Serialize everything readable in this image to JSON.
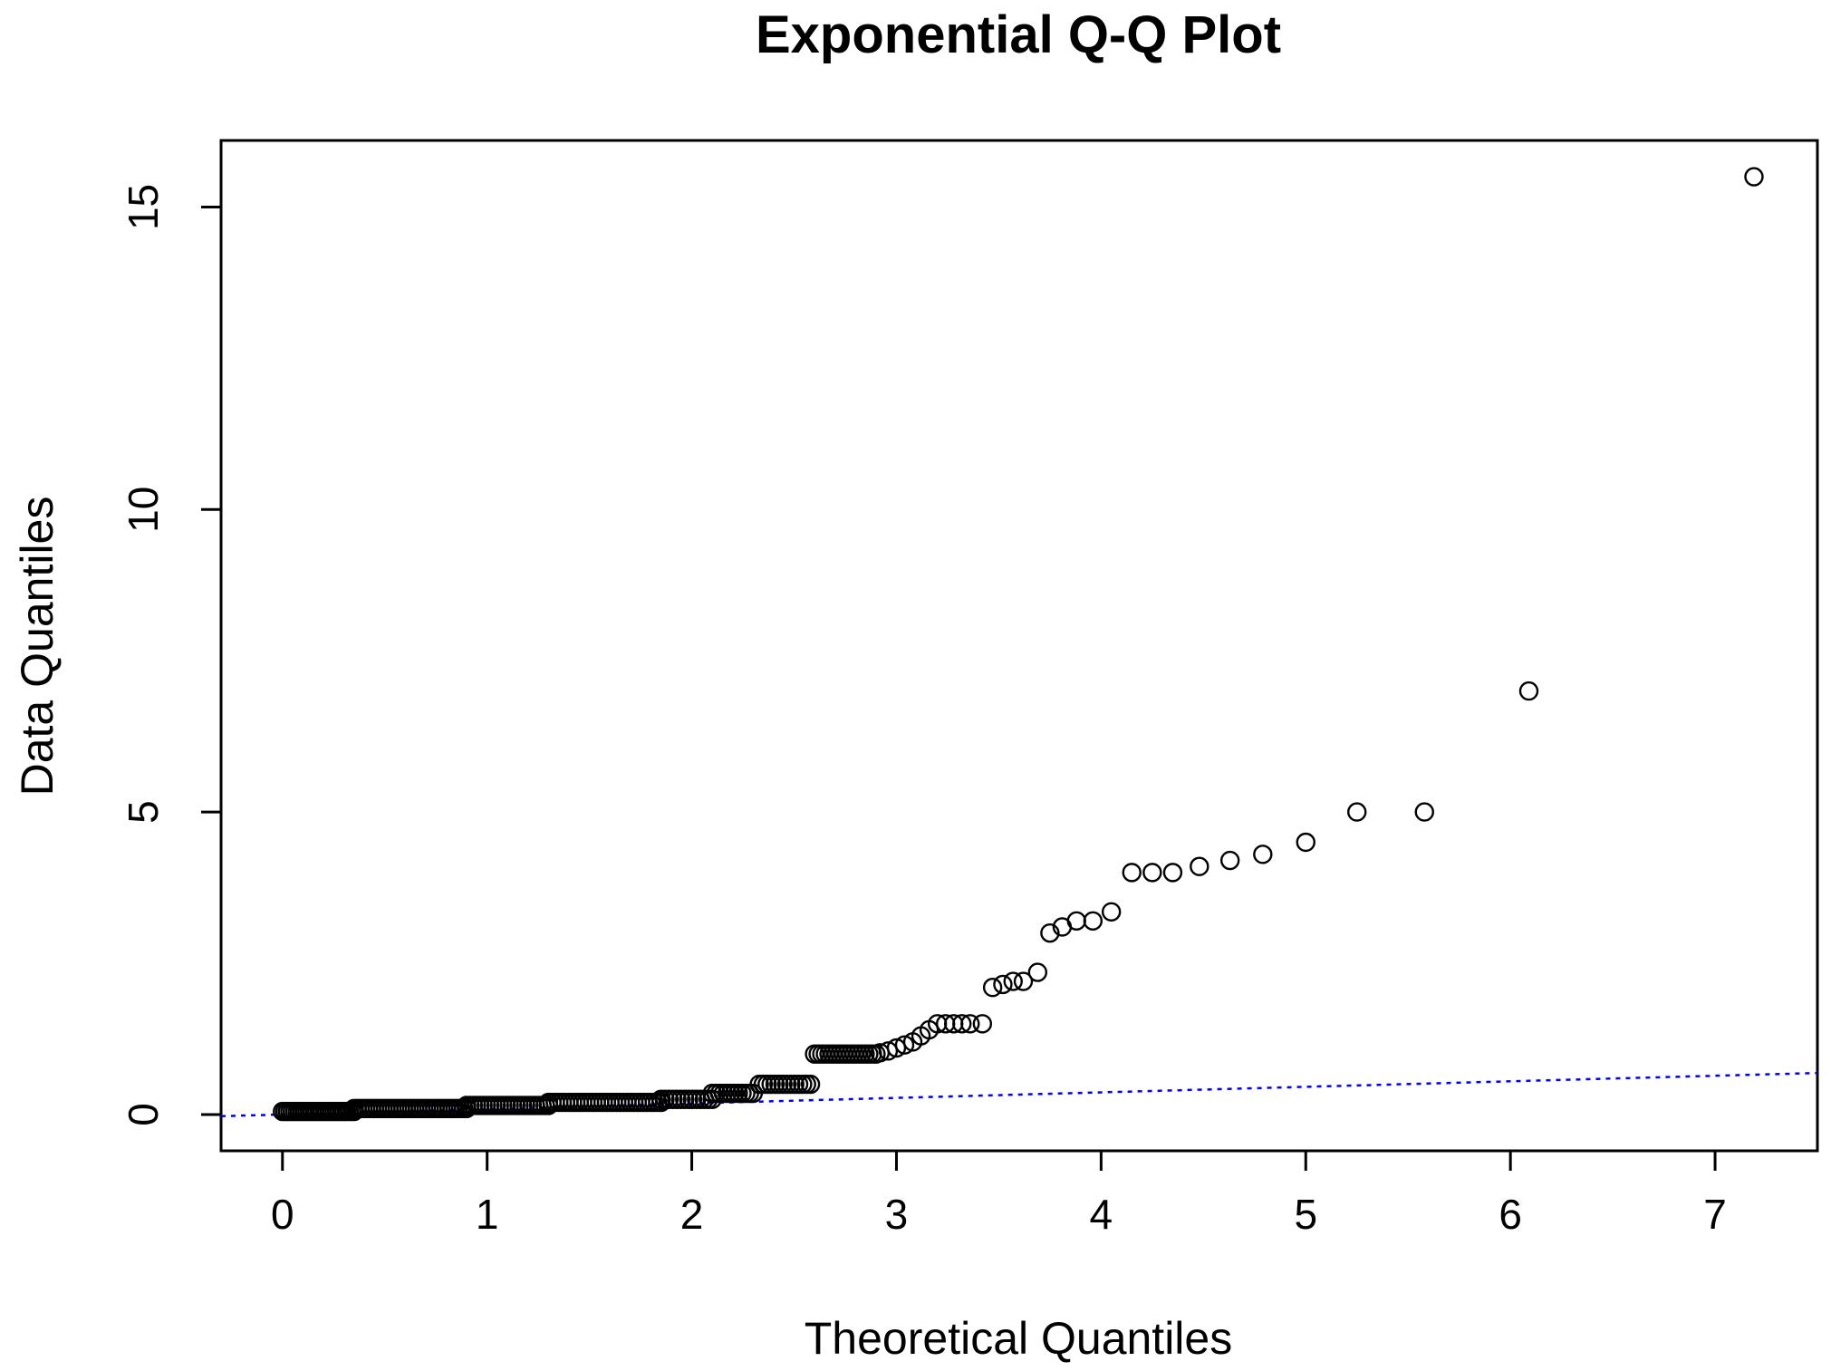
{
  "chart_data": {
    "type": "scatter",
    "title": "Exponential Q-Q Plot",
    "xlabel": "Theoretical Quantiles",
    "ylabel": "Data Quantiles",
    "xlim": [
      -0.3,
      7.5
    ],
    "ylim": [
      -0.6,
      16.1
    ],
    "xticks": [
      0,
      1,
      2,
      3,
      4,
      5,
      6,
      7
    ],
    "yticks": [
      0,
      5,
      10,
      15
    ],
    "grid": false,
    "legend": "none",
    "colors": {
      "points": "#000000",
      "reference_line": "#0000ff",
      "frame": "#000000"
    },
    "reference_line": {
      "intercept": 0,
      "slope": 0.0915,
      "style": "dotted",
      "x_range": [
        -0.3,
        7.5
      ]
    },
    "segments": [
      {
        "x0": 0.0,
        "x1": 0.35,
        "y": 0.05,
        "n": 30
      },
      {
        "x0": 0.35,
        "x1": 0.9,
        "y": 0.1,
        "n": 40
      },
      {
        "x0": 0.9,
        "x1": 1.3,
        "y": 0.15,
        "n": 26
      },
      {
        "x0": 1.3,
        "x1": 1.85,
        "y": 0.2,
        "n": 34
      },
      {
        "x0": 1.85,
        "x1": 2.1,
        "y": 0.25,
        "n": 14
      },
      {
        "x0": 2.1,
        "x1": 2.3,
        "y": 0.35,
        "n": 12
      },
      {
        "x0": 2.33,
        "x1": 2.58,
        "y": 0.5,
        "n": 14
      },
      {
        "x0": 2.6,
        "x1": 2.9,
        "y": 1.0,
        "n": 18
      }
    ],
    "points": [
      [
        2.92,
        1.02
      ],
      [
        2.96,
        1.05
      ],
      [
        3.0,
        1.1
      ],
      [
        3.04,
        1.15
      ],
      [
        3.08,
        1.2
      ],
      [
        3.12,
        1.3
      ],
      [
        3.16,
        1.4
      ],
      [
        3.2,
        1.5
      ],
      [
        3.24,
        1.5
      ],
      [
        3.28,
        1.5
      ],
      [
        3.32,
        1.5
      ],
      [
        3.36,
        1.5
      ],
      [
        3.42,
        1.5
      ],
      [
        3.47,
        2.1
      ],
      [
        3.52,
        2.15
      ],
      [
        3.57,
        2.2
      ],
      [
        3.62,
        2.2
      ],
      [
        3.69,
        2.35
      ],
      [
        3.75,
        3.0
      ],
      [
        3.81,
        3.1
      ],
      [
        3.88,
        3.2
      ],
      [
        3.96,
        3.2
      ],
      [
        4.05,
        3.35
      ],
      [
        4.15,
        4.0
      ],
      [
        4.25,
        4.0
      ],
      [
        4.35,
        4.0
      ],
      [
        4.48,
        4.1
      ],
      [
        4.63,
        4.2
      ],
      [
        4.79,
        4.3
      ],
      [
        5.0,
        4.5
      ],
      [
        5.25,
        5.0
      ],
      [
        5.58,
        5.0
      ],
      [
        6.09,
        7.0
      ],
      [
        7.19,
        15.5
      ]
    ]
  }
}
